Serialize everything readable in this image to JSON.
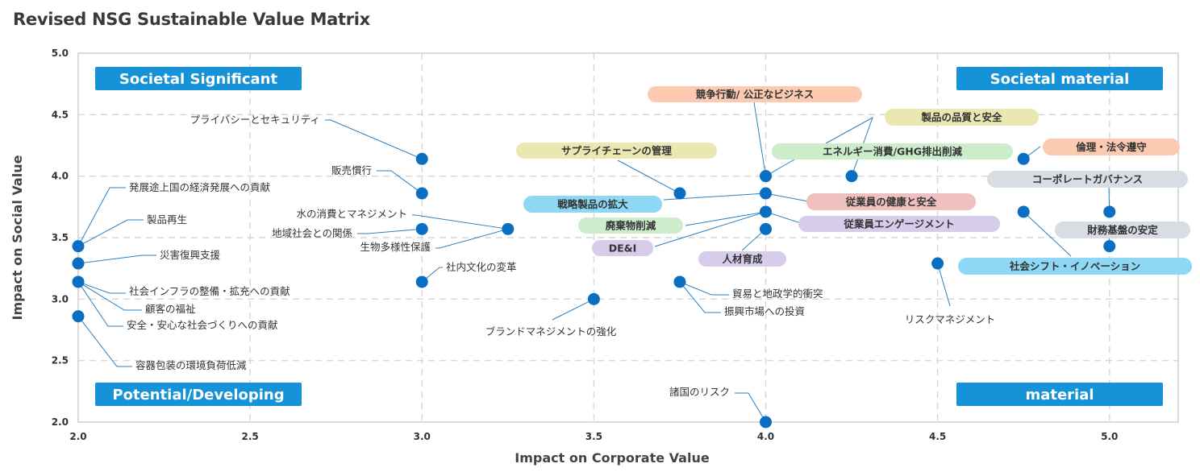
{
  "title": "Revised NSG Sustainable Value Matrix",
  "chart_data": {
    "type": "scatter",
    "title": "Revised NSG Sustainable Value Matrix",
    "xlabel": "Impact on Corporate Value",
    "ylabel": "Impact on Social Value",
    "xlim": [
      2.0,
      5.2
    ],
    "ylim": [
      2.0,
      5.0
    ],
    "x_ticks": [
      "2.0",
      "2.5",
      "3.0",
      "3.5",
      "4.0",
      "4.5",
      "5.0"
    ],
    "y_ticks": [
      "2.0",
      "2.5",
      "3.0",
      "3.5",
      "4.0",
      "4.5",
      "5.0"
    ],
    "grid": true,
    "point_color": "#0a6fc2",
    "quadrants": [
      {
        "label": "Societal Significant",
        "position": "top-left"
      },
      {
        "label": "Societal material",
        "position": "top-right"
      },
      {
        "label": "Potential/Developing",
        "position": "bottom-left"
      },
      {
        "label": "material",
        "position": "bottom-right"
      }
    ],
    "quadrant_color": "#1592d8",
    "points": [
      {
        "x": 2.0,
        "y": 3.43,
        "label": "発展途上国の経済発展への貢献"
      },
      {
        "x": 2.0,
        "y": 3.43,
        "label": "製品再生"
      },
      {
        "x": 2.0,
        "y": 3.29,
        "label": "災害復興支援"
      },
      {
        "x": 2.0,
        "y": 3.14,
        "label": "社会インフラの整備・拡充への貢献"
      },
      {
        "x": 2.0,
        "y": 3.14,
        "label": "顧客の福祉"
      },
      {
        "x": 2.0,
        "y": 3.14,
        "label": "安全・安心な社会づくりへの貢献"
      },
      {
        "x": 2.0,
        "y": 2.86,
        "label": "容器包装の環境負荷低減"
      },
      {
        "x": 3.0,
        "y": 4.14,
        "label": "プライバシーとセキュリティ"
      },
      {
        "x": 3.0,
        "y": 3.86,
        "label": "販売慣行"
      },
      {
        "x": 3.25,
        "y": 3.57,
        "label": "水の消費とマネジメント"
      },
      {
        "x": 3.0,
        "y": 3.57,
        "label": "地域社会との関係"
      },
      {
        "x": 3.25,
        "y": 3.57,
        "label": "生物多様性保護"
      },
      {
        "x": 3.0,
        "y": 3.14,
        "label": "社内文化の変革"
      },
      {
        "x": 3.5,
        "y": 3.0,
        "label": "ブランドマネジメントの強化"
      },
      {
        "x": 3.75,
        "y": 3.86,
        "label": "サプライチェーンの管理",
        "highlight": "#ebe7b2"
      },
      {
        "x": 4.0,
        "y": 3.86,
        "label": "戦略製品の拡大",
        "highlight": "#8ed8f6"
      },
      {
        "x": 4.0,
        "y": 3.71,
        "label": "廃棄物削減",
        "highlight": "#cdeccb"
      },
      {
        "x": 4.0,
        "y": 3.71,
        "label": "DE&I",
        "highlight": "#d7cdea"
      },
      {
        "x": 4.0,
        "y": 3.57,
        "label": "人材育成",
        "highlight": "#d7cdea"
      },
      {
        "x": 4.0,
        "y": 4.0,
        "label": "競争行動/ 公正なビジネス",
        "highlight": "#fbcab1"
      },
      {
        "x": 4.0,
        "y": 4.0,
        "label": "エネルギー消費/GHG排出削減",
        "highlight": "#cdeccb"
      },
      {
        "x": 4.0,
        "y": 3.86,
        "label": "従業員の健康と安全",
        "highlight": "#eec0bf"
      },
      {
        "x": 4.0,
        "y": 3.71,
        "label": "従業員エンゲージメント",
        "highlight": "#d7cdea"
      },
      {
        "x": 3.75,
        "y": 3.14,
        "label": "貿易と地政学的衝突"
      },
      {
        "x": 3.75,
        "y": 3.14,
        "label": "振興市場への投資"
      },
      {
        "x": 4.0,
        "y": 2.0,
        "label": "諸国のリスク"
      },
      {
        "x": 4.25,
        "y": 4.0,
        "label": "製品の品質と安全",
        "highlight": "#ebe7b2"
      },
      {
        "x": 4.5,
        "y": 3.29,
        "label": "リスクマネジメント"
      },
      {
        "x": 4.75,
        "y": 4.14,
        "label": "倫理・法令遵守",
        "highlight": "#fbcab1"
      },
      {
        "x": 4.75,
        "y": 3.71,
        "label": "社会シフト・イノベーション",
        "highlight": "#8ed8f6"
      },
      {
        "x": 5.0,
        "y": 3.71,
        "label": "コーポレートガバナンス",
        "highlight": "#d8dde4"
      },
      {
        "x": 5.0,
        "y": 3.43,
        "label": "財務基盤の安定",
        "highlight": "#d8dde4"
      }
    ]
  }
}
